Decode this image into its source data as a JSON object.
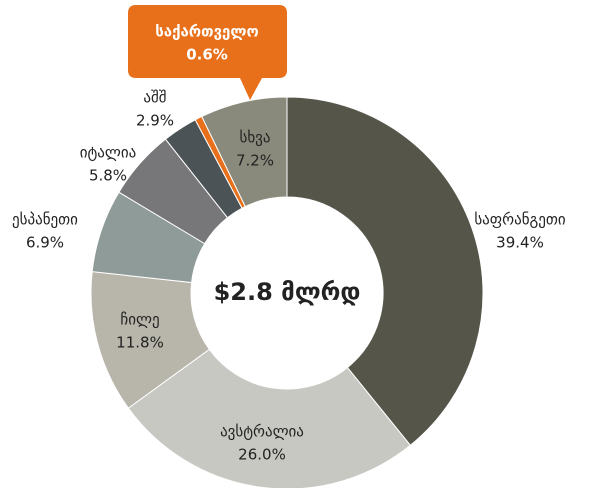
{
  "chart_data": {
    "type": "donut",
    "center_label": "$2.8 მლრდ",
    "categories": [
      "საფრანგეთი",
      "ავსტრალია",
      "ჩილე",
      "ესპანეთი",
      "იტალია",
      "აშშ",
      "საქართველო",
      "სხვა"
    ],
    "values": [
      39.4,
      26.0,
      11.8,
      6.9,
      5.8,
      2.9,
      0.6,
      7.2
    ],
    "value_labels": [
      "39.4%",
      "26.0%",
      "11.8%",
      "6.9%",
      "5.8%",
      "2.9%",
      "0.6%",
      "7.2%"
    ],
    "colors": [
      "#55554a",
      "#c8c8c2",
      "#b8b5ab",
      "#8f9b98",
      "#777678",
      "#4b5356",
      "#e8701a",
      "#8a8a7c"
    ]
  }
}
